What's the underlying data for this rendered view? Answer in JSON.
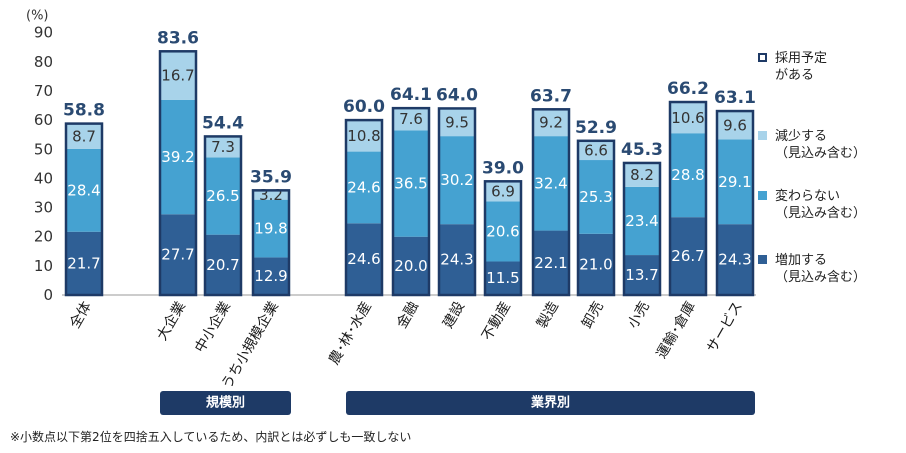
{
  "chart_data": {
    "type": "bar",
    "stacked": true,
    "unit_label": "(%)",
    "ylim": [
      0,
      90
    ],
    "yticks": [
      0,
      10,
      20,
      30,
      40,
      50,
      60,
      70,
      80,
      90
    ],
    "categories": [
      "全体",
      "大企業",
      "中小企業",
      "うち小規模企業",
      "農･林･水産",
      "金融",
      "建設",
      "不動産",
      "製造",
      "卸売",
      "小売",
      "運輸･倉庫",
      "サービス"
    ],
    "series": [
      {
        "name": "増加する（見込み含む）",
        "color": "#2f5f95",
        "values": [
          21.7,
          27.7,
          20.7,
          12.9,
          24.6,
          20.0,
          24.3,
          11.5,
          22.1,
          21.0,
          13.7,
          26.7,
          24.3
        ],
        "labels": [
          "21.7",
          "27.7",
          "20.7",
          "12.9",
          "24.6",
          "20.0",
          "24.3",
          "11.5",
          "22.1",
          "21.0",
          "13.7",
          "26.7",
          "24.3"
        ]
      },
      {
        "name": "変わらない（見込み含む）",
        "color": "#45a2d1",
        "values": [
          28.4,
          39.2,
          26.5,
          19.8,
          24.6,
          36.5,
          30.2,
          20.6,
          32.4,
          25.3,
          23.4,
          28.8,
          29.1
        ],
        "labels": [
          "28.4",
          "39.2",
          "26.5",
          "19.8",
          "24.6",
          "36.5",
          "30.2",
          "20.6",
          "32.4",
          "25.3",
          "23.4",
          "28.8",
          "29.1"
        ]
      },
      {
        "name": "減少する（見込み含む）",
        "color": "#a8d3ea",
        "values": [
          8.7,
          16.7,
          7.3,
          3.2,
          10.8,
          7.6,
          9.5,
          6.9,
          9.2,
          6.6,
          8.2,
          10.6,
          9.6
        ],
        "labels": [
          "8.7",
          "16.7",
          "7.3",
          "3.2",
          "10.8",
          "7.6",
          "9.5",
          "6.9",
          "9.2",
          "6.6",
          "8.2",
          "10.6",
          "9.6"
        ]
      }
    ],
    "totals": {
      "name": "採用予定がある",
      "values": [
        58.8,
        83.6,
        54.4,
        35.9,
        60.0,
        64.1,
        64.0,
        39.0,
        63.7,
        52.9,
        45.3,
        66.2,
        63.1
      ],
      "labels": [
        "58.8",
        "83.6",
        "54.4",
        "35.9",
        "60.0",
        "64.1",
        "64.0",
        "39.0",
        "63.7",
        "52.9",
        "45.3",
        "66.2",
        "63.1"
      ]
    },
    "groups": [
      {
        "label": "規模別",
        "from": 1,
        "to": 3
      },
      {
        "label": "業界別",
        "from": 4,
        "to": 12
      }
    ]
  },
  "legend": [
    {
      "label": "採用予定\nがある",
      "color": "#ffffff",
      "border": "#1e3a66"
    },
    {
      "label": "減少する\n（見込み含む）",
      "color": "#a8d3ea",
      "border": "#a8d3ea"
    },
    {
      "label": "変わらない\n（見込み含む）",
      "color": "#45a2d1",
      "border": "#45a2d1"
    },
    {
      "label": "増加する\n（見込み含む）",
      "color": "#2f5f95",
      "border": "#2f5f95"
    }
  ],
  "footnote": "※小数点以下第2位を四捨五入しているため、内訳とは必ずしも一致しない",
  "colors": {
    "outline": "#1e3a66",
    "group_band": "#1e3a66",
    "text_dark": "#333333"
  }
}
